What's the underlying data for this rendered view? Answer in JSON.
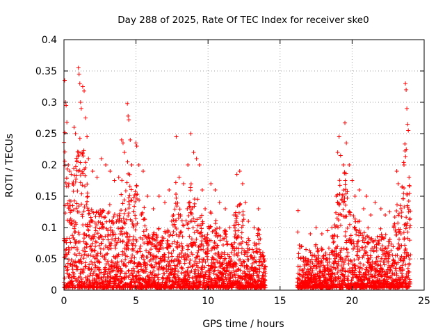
{
  "chart_data": {
    "type": "scatter",
    "title": "Day 288 of 2025, Rate Of TEC Index for receiver ske0",
    "xlabel": "GPS time / hours",
    "ylabel": "ROTI / TECUs",
    "xlim": [
      0,
      25
    ],
    "ylim": [
      0,
      0.4
    ],
    "xticks": [
      0,
      5,
      10,
      15,
      20,
      25
    ],
    "yticks": [
      0,
      0.05,
      0.1,
      0.15,
      0.2,
      0.25,
      0.3,
      0.35,
      0.4
    ],
    "xtick_labels": [
      "0",
      "5",
      "10",
      "15",
      "20",
      "25"
    ],
    "ytick_labels": [
      "0",
      "0.05",
      "0.1",
      "0.15",
      "0.2",
      "0.25",
      "0.3",
      "0.35",
      "0.4"
    ],
    "grid": true,
    "marker": "plus",
    "color": "#ff0000",
    "data_gaps_hours": [
      [
        14.0,
        16.2
      ]
    ],
    "series": [
      {
        "points": [
          [
            0.05,
            0.335
          ],
          [
            0.1,
            0.3
          ],
          [
            0.15,
            0.295
          ],
          [
            0.2,
            0.268
          ],
          [
            0.3,
            0.2
          ],
          [
            0.4,
            0.19
          ],
          [
            0.5,
            0.185
          ],
          [
            0.6,
            0.17
          ],
          [
            0.7,
            0.26
          ],
          [
            0.8,
            0.25
          ],
          [
            0.9,
            0.205
          ],
          [
            1.0,
            0.355
          ],
          [
            1.05,
            0.345
          ],
          [
            1.1,
            0.33
          ],
          [
            1.15,
            0.3
          ],
          [
            1.2,
            0.29
          ],
          [
            1.3,
            0.325
          ],
          [
            1.4,
            0.318
          ],
          [
            1.5,
            0.275
          ],
          [
            1.6,
            0.245
          ],
          [
            1.7,
            0.21
          ],
          [
            2.0,
            0.19
          ],
          [
            2.3,
            0.18
          ],
          [
            2.6,
            0.21
          ],
          [
            2.9,
            0.2
          ],
          [
            3.2,
            0.19
          ],
          [
            3.5,
            0.175
          ],
          [
            3.8,
            0.18
          ],
          [
            4.0,
            0.24
          ],
          [
            4.1,
            0.235
          ],
          [
            4.2,
            0.22
          ],
          [
            4.4,
            0.298
          ],
          [
            4.45,
            0.278
          ],
          [
            4.5,
            0.272
          ],
          [
            4.6,
            0.24
          ],
          [
            4.7,
            0.2
          ],
          [
            5.0,
            0.235
          ],
          [
            5.05,
            0.23
          ],
          [
            5.2,
            0.2
          ],
          [
            5.5,
            0.19
          ],
          [
            5.8,
            0.15
          ],
          [
            6.2,
            0.13
          ],
          [
            6.6,
            0.15
          ],
          [
            7.0,
            0.14
          ],
          [
            7.3,
            0.16
          ],
          [
            7.6,
            0.12
          ],
          [
            7.8,
            0.245
          ],
          [
            8.0,
            0.18
          ],
          [
            8.3,
            0.17
          ],
          [
            8.6,
            0.2
          ],
          [
            8.8,
            0.25
          ],
          [
            9.0,
            0.22
          ],
          [
            9.2,
            0.21
          ],
          [
            9.4,
            0.2
          ],
          [
            9.6,
            0.16
          ],
          [
            9.8,
            0.13
          ],
          [
            10.2,
            0.17
          ],
          [
            10.5,
            0.16
          ],
          [
            10.8,
            0.14
          ],
          [
            11.2,
            0.13
          ],
          [
            11.5,
            0.1
          ],
          [
            11.8,
            0.12
          ],
          [
            12.0,
            0.185
          ],
          [
            12.2,
            0.19
          ],
          [
            12.4,
            0.17
          ],
          [
            12.6,
            0.14
          ],
          [
            12.8,
            0.11
          ],
          [
            13.2,
            0.1
          ],
          [
            13.5,
            0.13
          ],
          [
            13.8,
            0.06
          ],
          [
            13.95,
            0.03
          ],
          [
            16.25,
            0.127
          ],
          [
            16.5,
            0.07
          ],
          [
            16.8,
            0.065
          ],
          [
            17.1,
            0.09
          ],
          [
            17.5,
            0.1
          ],
          [
            17.9,
            0.09
          ],
          [
            18.3,
            0.095
          ],
          [
            18.6,
            0.1
          ],
          [
            18.9,
            0.15
          ],
          [
            19.0,
            0.22
          ],
          [
            19.1,
            0.245
          ],
          [
            19.2,
            0.215
          ],
          [
            19.4,
            0.2
          ],
          [
            19.5,
            0.267
          ],
          [
            19.6,
            0.235
          ],
          [
            19.8,
            0.2
          ],
          [
            20.0,
            0.175
          ],
          [
            20.2,
            0.15
          ],
          [
            20.5,
            0.16
          ],
          [
            20.8,
            0.13
          ],
          [
            21.0,
            0.15
          ],
          [
            21.3,
            0.12
          ],
          [
            21.6,
            0.14
          ],
          [
            22.0,
            0.13
          ],
          [
            22.3,
            0.12
          ],
          [
            22.6,
            0.125
          ],
          [
            22.9,
            0.1
          ],
          [
            23.1,
            0.19
          ],
          [
            23.2,
            0.17
          ],
          [
            23.4,
            0.13
          ],
          [
            23.6,
            0.2
          ],
          [
            23.7,
            0.33
          ],
          [
            23.75,
            0.32
          ],
          [
            23.8,
            0.29
          ],
          [
            23.85,
            0.265
          ],
          [
            23.9,
            0.255
          ],
          [
            23.95,
            0.18
          ],
          [
            24.0,
            0.1
          ]
        ]
      }
    ]
  }
}
